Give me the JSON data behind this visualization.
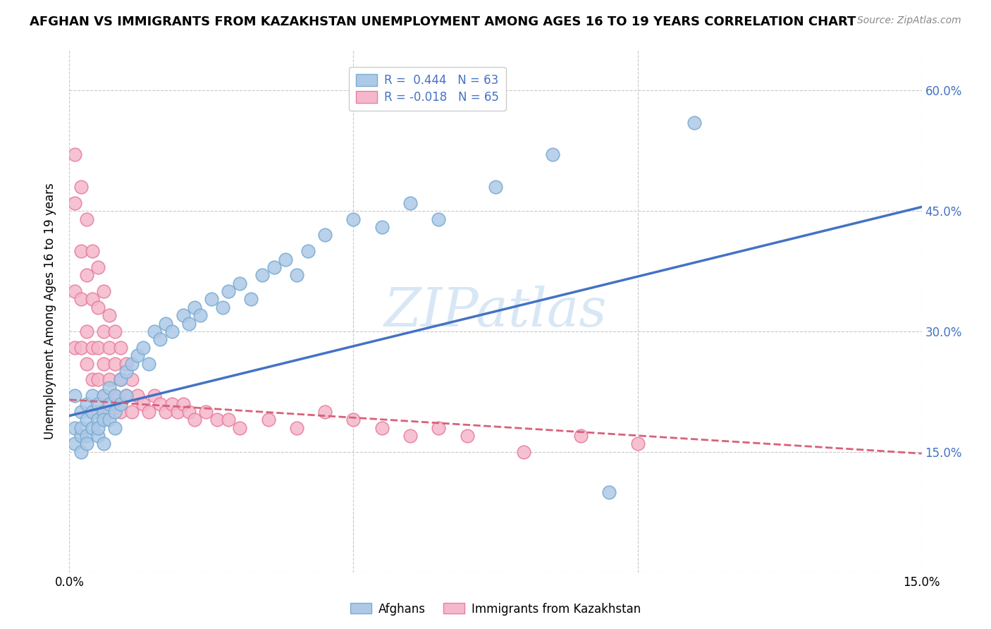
{
  "title": "AFGHAN VS IMMIGRANTS FROM KAZAKHSTAN UNEMPLOYMENT AMONG AGES 16 TO 19 YEARS CORRELATION CHART",
  "source": "Source: ZipAtlas.com",
  "ylabel": "Unemployment Among Ages 16 to 19 years",
  "xlim": [
    0.0,
    0.15
  ],
  "ylim": [
    0.0,
    0.65
  ],
  "xticks": [
    0.0,
    0.05,
    0.1,
    0.15
  ],
  "xtick_labels": [
    "0.0%",
    "",
    "",
    "15.0%"
  ],
  "yticks": [
    0.0,
    0.15,
    0.3,
    0.45,
    0.6
  ],
  "right_ytick_labels": [
    "",
    "15.0%",
    "30.0%",
    "45.0%",
    "60.0%"
  ],
  "afghans_R": 0.444,
  "afghans_N": 63,
  "kazakh_R": -0.018,
  "kazakh_N": 65,
  "afghan_color": "#adc9e8",
  "afghan_edge": "#7aabd0",
  "kazakh_color": "#f5b8cb",
  "kazakh_edge": "#e87ea0",
  "trendline_afghan": "#4472c4",
  "trendline_kazakh": "#d9607a",
  "watermark": "ZIPatlas",
  "background_color": "#ffffff",
  "grid_color": "#c8c8c8",
  "legend_text_color": "#4472c4",
  "afghan_trend_x0": 0.0,
  "afghan_trend_y0": 0.195,
  "afghan_trend_x1": 0.15,
  "afghan_trend_y1": 0.455,
  "kazakh_trend_x0": 0.0,
  "kazakh_trend_y0": 0.215,
  "kazakh_trend_x1": 0.15,
  "kazakh_trend_y1": 0.148,
  "afghans_x": [
    0.001,
    0.001,
    0.001,
    0.002,
    0.002,
    0.002,
    0.002,
    0.003,
    0.003,
    0.003,
    0.003,
    0.004,
    0.004,
    0.004,
    0.005,
    0.005,
    0.005,
    0.005,
    0.006,
    0.006,
    0.006,
    0.006,
    0.007,
    0.007,
    0.007,
    0.008,
    0.008,
    0.008,
    0.009,
    0.009,
    0.01,
    0.01,
    0.011,
    0.012,
    0.013,
    0.014,
    0.015,
    0.016,
    0.017,
    0.018,
    0.02,
    0.021,
    0.022,
    0.023,
    0.025,
    0.027,
    0.028,
    0.03,
    0.032,
    0.034,
    0.036,
    0.038,
    0.04,
    0.042,
    0.045,
    0.05,
    0.055,
    0.06,
    0.065,
    0.075,
    0.085,
    0.095,
    0.11
  ],
  "afghans_y": [
    0.18,
    0.22,
    0.16,
    0.17,
    0.2,
    0.18,
    0.15,
    0.19,
    0.21,
    0.17,
    0.16,
    0.2,
    0.18,
    0.22,
    0.19,
    0.21,
    0.17,
    0.18,
    0.2,
    0.19,
    0.22,
    0.16,
    0.21,
    0.19,
    0.23,
    0.2,
    0.22,
    0.18,
    0.21,
    0.24,
    0.22,
    0.25,
    0.26,
    0.27,
    0.28,
    0.26,
    0.3,
    0.29,
    0.31,
    0.3,
    0.32,
    0.31,
    0.33,
    0.32,
    0.34,
    0.33,
    0.35,
    0.36,
    0.34,
    0.37,
    0.38,
    0.39,
    0.37,
    0.4,
    0.42,
    0.44,
    0.43,
    0.46,
    0.44,
    0.48,
    0.52,
    0.1,
    0.56
  ],
  "kazakh_x": [
    0.001,
    0.001,
    0.001,
    0.001,
    0.002,
    0.002,
    0.002,
    0.002,
    0.003,
    0.003,
    0.003,
    0.003,
    0.004,
    0.004,
    0.004,
    0.004,
    0.005,
    0.005,
    0.005,
    0.005,
    0.005,
    0.006,
    0.006,
    0.006,
    0.006,
    0.007,
    0.007,
    0.007,
    0.007,
    0.008,
    0.008,
    0.008,
    0.009,
    0.009,
    0.009,
    0.01,
    0.01,
    0.011,
    0.011,
    0.012,
    0.013,
    0.014,
    0.015,
    0.016,
    0.017,
    0.018,
    0.019,
    0.02,
    0.021,
    0.022,
    0.024,
    0.026,
    0.028,
    0.03,
    0.035,
    0.04,
    0.045,
    0.05,
    0.055,
    0.06,
    0.065,
    0.07,
    0.08,
    0.09,
    0.1
  ],
  "kazakh_y": [
    0.52,
    0.46,
    0.35,
    0.28,
    0.48,
    0.4,
    0.34,
    0.28,
    0.44,
    0.37,
    0.3,
    0.26,
    0.4,
    0.34,
    0.28,
    0.24,
    0.38,
    0.33,
    0.28,
    0.24,
    0.2,
    0.35,
    0.3,
    0.26,
    0.22,
    0.32,
    0.28,
    0.24,
    0.2,
    0.3,
    0.26,
    0.22,
    0.28,
    0.24,
    0.2,
    0.26,
    0.22,
    0.24,
    0.2,
    0.22,
    0.21,
    0.2,
    0.22,
    0.21,
    0.2,
    0.21,
    0.2,
    0.21,
    0.2,
    0.19,
    0.2,
    0.19,
    0.19,
    0.18,
    0.19,
    0.18,
    0.2,
    0.19,
    0.18,
    0.17,
    0.18,
    0.17,
    0.15,
    0.17,
    0.16
  ]
}
